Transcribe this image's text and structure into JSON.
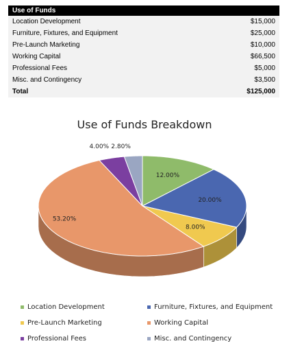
{
  "table": {
    "header": "Use of Funds",
    "rows": [
      {
        "label": "Location Development",
        "amount": "$15,000"
      },
      {
        "label": "Furniture, Fixtures, and Equipment",
        "amount": "$25,000"
      },
      {
        "label": "Pre-Launch Marketing",
        "amount": "$10,000"
      },
      {
        "label": "Working Capital",
        "amount": "$66,500"
      },
      {
        "label": "Professional Fees",
        "amount": "$5,000"
      },
      {
        "label": "Misc. and Contingency",
        "amount": "$3,500"
      }
    ],
    "total": {
      "label": "Total",
      "amount": "$125,000"
    }
  },
  "chart_data": {
    "type": "pie",
    "title": "Use of Funds Breakdown",
    "categories": [
      "Location Development",
      "Furniture, Fixtures, and Equipment",
      "Pre-Launch Marketing",
      "Working Capital",
      "Professional Fees",
      "Misc. and Contingency"
    ],
    "values": [
      12.0,
      20.0,
      8.0,
      53.2,
      4.0,
      2.8
    ],
    "labels": [
      "12.00%",
      "20.00%",
      "8.00%",
      "53.20%",
      "4.00%",
      "2.80%"
    ],
    "colors": [
      "#8fbb6a",
      "#4a67b0",
      "#f0c94f",
      "#e8976a",
      "#7b3fa0",
      "#9aa6c2"
    ],
    "legend_position": "bottom"
  }
}
